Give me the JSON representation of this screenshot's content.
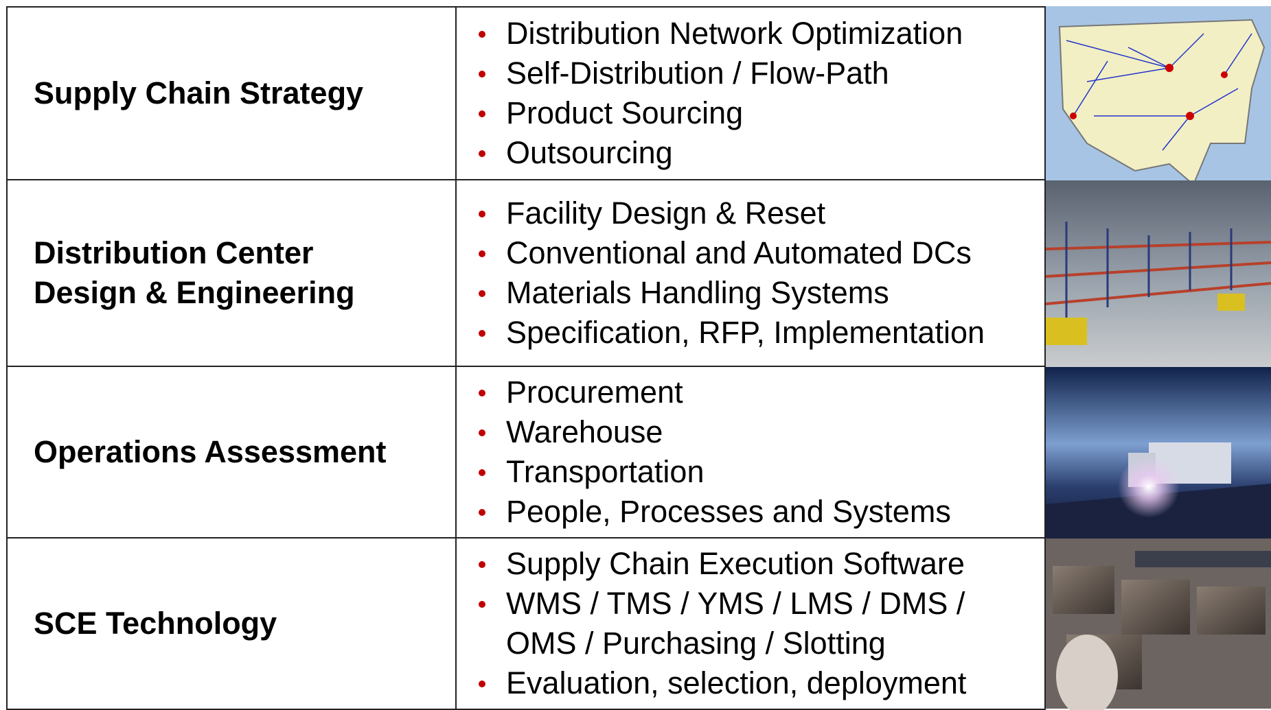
{
  "rows": [
    {
      "category": "Supply Chain Strategy",
      "items": [
        "Distribution Network Optimization",
        "Self-Distribution / Flow-Path",
        "Product Sourcing",
        "Outsourcing"
      ]
    },
    {
      "category": "Distribution Center Design & Engineering",
      "items": [
        "Facility Design & Reset",
        "Conventional and Automated DCs",
        "Materials Handling Systems",
        "Specification, RFP, Implementation"
      ]
    },
    {
      "category": "Operations Assessment",
      "items": [
        "Procurement",
        "Warehouse",
        "Transportation",
        "People, Processes and Systems"
      ]
    },
    {
      "category": "SCE Technology",
      "items": [
        "Supply Chain Execution Software",
        "WMS / TMS / YMS / LMS / DMS / OMS / Purchasing / Slotting",
        "Evaluation, selection, deployment"
      ]
    }
  ]
}
